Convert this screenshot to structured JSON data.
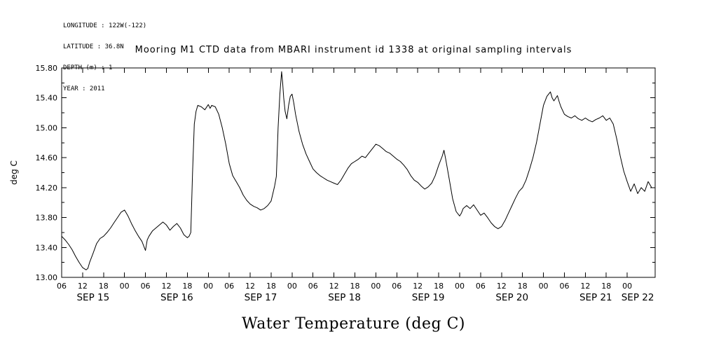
{
  "metadata": {
    "lines": [
      "LONGITUDE : 122W(-122)",
      "LATITUDE : 36.8N",
      "DEPTH (m) : 1",
      "YEAR : 2011"
    ]
  },
  "chart_data": {
    "type": "line",
    "title": "Mooring M1 CTD data from MBARI instrument id 1338 at original sampling intervals",
    "xlabel": "Water Temperature (deg C)",
    "ylabel": "deg C",
    "x_units": "hours from SEP 15 2011 00:00",
    "xlim": [
      6,
      176
    ],
    "ylim": [
      13.0,
      15.8
    ],
    "grid": false,
    "line_color": "#000000",
    "y_ticks": [
      {
        "value": 13.0,
        "label": "13.00"
      },
      {
        "value": 13.4,
        "label": "13.40"
      },
      {
        "value": 13.8,
        "label": "13.80"
      },
      {
        "value": 14.2,
        "label": "14.20"
      },
      {
        "value": 14.6,
        "label": "14.60"
      },
      {
        "value": 15.0,
        "label": "15.00"
      },
      {
        "value": 15.4,
        "label": "15.40"
      },
      {
        "value": 15.8,
        "label": "15.80"
      }
    ],
    "y_minor_step": 0.2,
    "x_ticks": [
      {
        "hour": 6,
        "label": "06"
      },
      {
        "hour": 12,
        "label": "12"
      },
      {
        "hour": 18,
        "label": "18"
      },
      {
        "hour": 24,
        "label": "00"
      },
      {
        "hour": 30,
        "label": "06"
      },
      {
        "hour": 36,
        "label": "12"
      },
      {
        "hour": 42,
        "label": "18"
      },
      {
        "hour": 48,
        "label": "00"
      },
      {
        "hour": 54,
        "label": "06"
      },
      {
        "hour": 60,
        "label": "12"
      },
      {
        "hour": 66,
        "label": "18"
      },
      {
        "hour": 72,
        "label": "00"
      },
      {
        "hour": 78,
        "label": "06"
      },
      {
        "hour": 84,
        "label": "12"
      },
      {
        "hour": 90,
        "label": "18"
      },
      {
        "hour": 96,
        "label": "00"
      },
      {
        "hour": 102,
        "label": "06"
      },
      {
        "hour": 108,
        "label": "12"
      },
      {
        "hour": 114,
        "label": "18"
      },
      {
        "hour": 120,
        "label": "00"
      },
      {
        "hour": 126,
        "label": "06"
      },
      {
        "hour": 132,
        "label": "12"
      },
      {
        "hour": 138,
        "label": "18"
      },
      {
        "hour": 144,
        "label": "00"
      },
      {
        "hour": 150,
        "label": "06"
      },
      {
        "hour": 156,
        "label": "12"
      },
      {
        "hour": 162,
        "label": "18"
      },
      {
        "hour": 168,
        "label": "00"
      }
    ],
    "day_labels": [
      {
        "hour": 15,
        "label": "SEP 15"
      },
      {
        "hour": 39,
        "label": "SEP 16"
      },
      {
        "hour": 63,
        "label": "SEP 17"
      },
      {
        "hour": 87,
        "label": "SEP 18"
      },
      {
        "hour": 111,
        "label": "SEP 19"
      },
      {
        "hour": 135,
        "label": "SEP 20"
      },
      {
        "hour": 159,
        "label": "SEP 21"
      },
      {
        "hour": 171,
        "label": "SEP 22"
      }
    ],
    "series": [
      {
        "name": "water_temperature_deg_C",
        "points": [
          [
            6,
            13.55
          ],
          [
            7,
            13.5
          ],
          [
            8,
            13.44
          ],
          [
            9,
            13.37
          ],
          [
            10,
            13.28
          ],
          [
            11,
            13.2
          ],
          [
            12,
            13.13
          ],
          [
            13,
            13.1
          ],
          [
            13.5,
            13.12
          ],
          [
            14,
            13.2
          ],
          [
            15,
            13.32
          ],
          [
            16,
            13.45
          ],
          [
            17,
            13.52
          ],
          [
            18,
            13.55
          ],
          [
            19,
            13.6
          ],
          [
            20,
            13.66
          ],
          [
            21,
            13.73
          ],
          [
            22,
            13.8
          ],
          [
            23,
            13.87
          ],
          [
            24,
            13.9
          ],
          [
            25,
            13.82
          ],
          [
            26,
            13.72
          ],
          [
            27,
            13.63
          ],
          [
            28,
            13.55
          ],
          [
            29,
            13.48
          ],
          [
            29.5,
            13.42
          ],
          [
            30,
            13.36
          ],
          [
            30.5,
            13.5
          ],
          [
            31,
            13.55
          ],
          [
            32,
            13.62
          ],
          [
            33,
            13.66
          ],
          [
            34,
            13.7
          ],
          [
            35,
            13.74
          ],
          [
            36,
            13.7
          ],
          [
            37,
            13.63
          ],
          [
            38,
            13.68
          ],
          [
            39,
            13.72
          ],
          [
            40,
            13.66
          ],
          [
            41,
            13.57
          ],
          [
            42,
            13.53
          ],
          [
            42.5,
            13.55
          ],
          [
            43,
            13.6
          ],
          [
            43.5,
            14.4
          ],
          [
            44,
            15.05
          ],
          [
            44.5,
            15.22
          ],
          [
            45,
            15.3
          ],
          [
            46,
            15.28
          ],
          [
            47,
            15.24
          ],
          [
            48,
            15.31
          ],
          [
            48.5,
            15.26
          ],
          [
            49,
            15.3
          ],
          [
            50,
            15.28
          ],
          [
            51,
            15.18
          ],
          [
            52,
            15.0
          ],
          [
            53,
            14.78
          ],
          [
            54,
            14.52
          ],
          [
            55,
            14.36
          ],
          [
            56,
            14.28
          ],
          [
            57,
            14.2
          ],
          [
            58,
            14.1
          ],
          [
            59,
            14.03
          ],
          [
            60,
            13.98
          ],
          [
            61,
            13.95
          ],
          [
            62,
            13.93
          ],
          [
            63,
            13.9
          ],
          [
            64,
            13.92
          ],
          [
            65,
            13.96
          ],
          [
            66,
            14.02
          ],
          [
            67,
            14.22
          ],
          [
            67.5,
            14.35
          ],
          [
            68,
            15.0
          ],
          [
            68.5,
            15.45
          ],
          [
            69,
            15.75
          ],
          [
            69.3,
            15.6
          ],
          [
            69.6,
            15.4
          ],
          [
            70,
            15.22
          ],
          [
            70.5,
            15.12
          ],
          [
            71,
            15.3
          ],
          [
            71.5,
            15.42
          ],
          [
            72,
            15.45
          ],
          [
            72.5,
            15.33
          ],
          [
            73,
            15.18
          ],
          [
            74,
            14.95
          ],
          [
            75,
            14.78
          ],
          [
            76,
            14.65
          ],
          [
            77,
            14.55
          ],
          [
            78,
            14.45
          ],
          [
            79,
            14.4
          ],
          [
            80,
            14.36
          ],
          [
            81,
            14.33
          ],
          [
            82,
            14.3
          ],
          [
            83,
            14.28
          ],
          [
            84,
            14.26
          ],
          [
            85,
            14.24
          ],
          [
            86,
            14.3
          ],
          [
            87,
            14.38
          ],
          [
            88,
            14.46
          ],
          [
            89,
            14.52
          ],
          [
            90,
            14.55
          ],
          [
            91,
            14.58
          ],
          [
            92,
            14.62
          ],
          [
            93,
            14.6
          ],
          [
            94,
            14.66
          ],
          [
            95,
            14.72
          ],
          [
            96,
            14.78
          ],
          [
            97,
            14.76
          ],
          [
            98,
            14.72
          ],
          [
            99,
            14.68
          ],
          [
            100,
            14.66
          ],
          [
            101,
            14.62
          ],
          [
            102,
            14.58
          ],
          [
            103,
            14.55
          ],
          [
            104,
            14.5
          ],
          [
            105,
            14.44
          ],
          [
            106,
            14.36
          ],
          [
            107,
            14.3
          ],
          [
            108,
            14.27
          ],
          [
            109,
            14.22
          ],
          [
            110,
            14.18
          ],
          [
            111,
            14.21
          ],
          [
            112,
            14.26
          ],
          [
            113,
            14.36
          ],
          [
            114,
            14.5
          ],
          [
            115,
            14.62
          ],
          [
            115.5,
            14.7
          ],
          [
            116,
            14.58
          ],
          [
            117,
            14.32
          ],
          [
            118,
            14.05
          ],
          [
            119,
            13.88
          ],
          [
            120,
            13.82
          ],
          [
            120.5,
            13.86
          ],
          [
            121,
            13.92
          ],
          [
            122,
            13.96
          ],
          [
            123,
            13.92
          ],
          [
            124,
            13.97
          ],
          [
            125,
            13.9
          ],
          [
            126,
            13.83
          ],
          [
            127,
            13.86
          ],
          [
            128,
            13.8
          ],
          [
            129,
            13.73
          ],
          [
            130,
            13.68
          ],
          [
            131,
            13.65
          ],
          [
            132,
            13.68
          ],
          [
            133,
            13.76
          ],
          [
            134,
            13.86
          ],
          [
            135,
            13.96
          ],
          [
            136,
            14.06
          ],
          [
            137,
            14.15
          ],
          [
            138,
            14.2
          ],
          [
            139,
            14.3
          ],
          [
            140,
            14.44
          ],
          [
            141,
            14.6
          ],
          [
            142,
            14.8
          ],
          [
            143,
            15.05
          ],
          [
            144,
            15.3
          ],
          [
            145,
            15.42
          ],
          [
            146,
            15.48
          ],
          [
            146.5,
            15.4
          ],
          [
            147,
            15.36
          ],
          [
            148,
            15.43
          ],
          [
            148.5,
            15.35
          ],
          [
            149,
            15.28
          ],
          [
            150,
            15.18
          ],
          [
            151,
            15.15
          ],
          [
            152,
            15.13
          ],
          [
            153,
            15.16
          ],
          [
            154,
            15.12
          ],
          [
            155,
            15.1
          ],
          [
            156,
            15.13
          ],
          [
            157,
            15.1
          ],
          [
            158,
            15.08
          ],
          [
            159,
            15.11
          ],
          [
            160,
            15.13
          ],
          [
            161,
            15.16
          ],
          [
            162,
            15.1
          ],
          [
            163,
            15.13
          ],
          [
            164,
            15.05
          ],
          [
            165,
            14.85
          ],
          [
            166,
            14.62
          ],
          [
            167,
            14.42
          ],
          [
            168,
            14.28
          ],
          [
            169,
            14.15
          ],
          [
            170,
            14.25
          ],
          [
            171,
            14.12
          ],
          [
            172,
            14.2
          ],
          [
            173,
            14.15
          ],
          [
            174,
            14.28
          ],
          [
            175,
            14.2
          ]
        ]
      }
    ]
  }
}
